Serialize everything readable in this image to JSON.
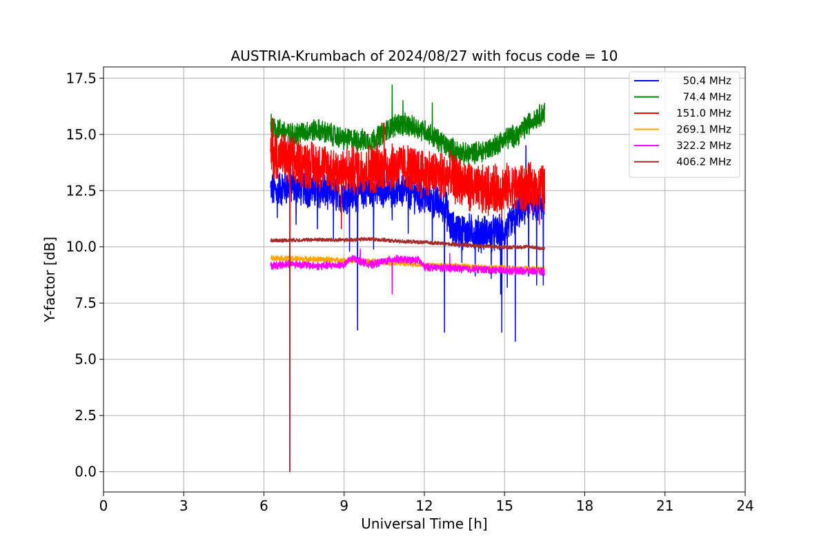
{
  "chart_data": {
    "type": "line",
    "title": "AUSTRIA-Krumbach of 2024/08/27 with focus code = 10",
    "xlabel": "Universal Time [h]",
    "ylabel": "Y-factor [dB]",
    "xlim": [
      0,
      24
    ],
    "ylim": [
      -0.9,
      18.0
    ],
    "xticks": [
      0,
      3,
      6,
      9,
      12,
      15,
      18,
      21,
      24
    ],
    "xtick_labels": [
      "0",
      "3",
      "6",
      "9",
      "12",
      "15",
      "18",
      "21",
      "24"
    ],
    "yticks": [
      0,
      2.5,
      5,
      7.5,
      10,
      12.5,
      15,
      17.5
    ],
    "ytick_labels": [
      "0.0",
      "2.5",
      "5.0",
      "7.5",
      "10.0",
      "12.5",
      "15.0",
      "17.5"
    ],
    "grid": true,
    "legend_position": "top-right",
    "series": [
      {
        "name": "50.4 MHz",
        "color": "#0000ff",
        "band": 1.4,
        "noise": 0.4,
        "points": [
          [
            6.25,
            12.5
          ],
          [
            7.0,
            12.7
          ],
          [
            8.0,
            12.5
          ],
          [
            9.0,
            12.3
          ],
          [
            10.0,
            12.5
          ],
          [
            11.0,
            12.6
          ],
          [
            12.0,
            12.2
          ],
          [
            12.8,
            11.8
          ],
          [
            13.0,
            10.8
          ],
          [
            14.0,
            10.6
          ],
          [
            15.0,
            10.6
          ],
          [
            15.5,
            11.5
          ],
          [
            16.0,
            12.0
          ],
          [
            16.5,
            11.8
          ]
        ],
        "dips": [
          [
            6.5,
            11.3
          ],
          [
            7.2,
            11.0
          ],
          [
            8.0,
            10.8
          ],
          [
            8.6,
            10.3
          ],
          [
            9.2,
            9.8
          ],
          [
            9.5,
            6.3
          ],
          [
            10.1,
            9.9
          ],
          [
            10.8,
            11.2
          ],
          [
            11.4,
            10.6
          ],
          [
            12.3,
            10.2
          ],
          [
            12.75,
            6.2
          ],
          [
            13.4,
            9.3
          ],
          [
            13.9,
            8.7
          ],
          [
            14.5,
            8.6
          ],
          [
            14.85,
            7.9
          ],
          [
            14.9,
            6.2
          ],
          [
            15.1,
            8.2
          ],
          [
            15.4,
            5.8
          ],
          [
            15.9,
            8.7
          ],
          [
            16.2,
            8.3
          ],
          [
            16.45,
            8.3
          ]
        ],
        "spikes": [
          [
            15.8,
            14.5
          ],
          [
            11.7,
            13.8
          ],
          [
            12.3,
            13.3
          ]
        ]
      },
      {
        "name": "74.4 MHz",
        "color": "#008000",
        "band": 0.9,
        "noise": 0.2,
        "points": [
          [
            6.25,
            15.4
          ],
          [
            7.0,
            15.0
          ],
          [
            8.0,
            15.2
          ],
          [
            9.0,
            14.8
          ],
          [
            10.0,
            14.7
          ],
          [
            11.0,
            15.5
          ],
          [
            12.0,
            15.2
          ],
          [
            12.8,
            14.5
          ],
          [
            13.5,
            14.1
          ],
          [
            14.0,
            14.2
          ],
          [
            14.5,
            14.4
          ],
          [
            15.0,
            14.8
          ],
          [
            15.5,
            15.0
          ],
          [
            16.0,
            15.6
          ],
          [
            16.5,
            16.0
          ]
        ],
        "dips": [],
        "spikes": [
          [
            10.8,
            17.2
          ],
          [
            6.27,
            15.9
          ],
          [
            11.2,
            16.5
          ],
          [
            12.3,
            16.4
          ]
        ]
      },
      {
        "name": "151.0 MHz",
        "color": "#ff0000",
        "band": 2.0,
        "noise": 0.4,
        "points": [
          [
            6.25,
            14.2
          ],
          [
            7.0,
            13.8
          ],
          [
            8.0,
            13.6
          ],
          [
            9.0,
            13.3
          ],
          [
            10.0,
            13.5
          ],
          [
            11.0,
            13.6
          ],
          [
            12.0,
            13.3
          ],
          [
            13.0,
            13.1
          ],
          [
            14.0,
            12.5
          ],
          [
            15.0,
            12.6
          ],
          [
            16.0,
            12.6
          ],
          [
            16.5,
            12.6
          ]
        ],
        "dips": [
          [
            6.97,
            0.0
          ],
          [
            8.9,
            10.8
          ],
          [
            14.9,
            11.2
          ],
          [
            16.3,
            11.0
          ]
        ],
        "spikes": [
          [
            6.3,
            15.7
          ],
          [
            10.5,
            15.5
          ]
        ]
      },
      {
        "name": "269.1 MHz",
        "color": "#ffa500",
        "band": 0.22,
        "noise": 0.05,
        "points": [
          [
            6.25,
            9.5
          ],
          [
            8.0,
            9.45
          ],
          [
            10.0,
            9.35
          ],
          [
            12.0,
            9.2
          ],
          [
            14.0,
            9.1
          ],
          [
            16.5,
            9.0
          ]
        ],
        "dips": [
          [
            6.97,
            0.0
          ]
        ],
        "spikes": []
      },
      {
        "name": "322.2 MHz",
        "color": "#ff00ff",
        "band": 0.3,
        "noise": 0.08,
        "points": [
          [
            6.25,
            9.15
          ],
          [
            7.0,
            9.25
          ],
          [
            8.0,
            9.15
          ],
          [
            9.0,
            9.2
          ],
          [
            9.3,
            9.5
          ],
          [
            10.0,
            9.2
          ],
          [
            10.8,
            9.45
          ],
          [
            11.8,
            9.4
          ],
          [
            12.0,
            9.1
          ],
          [
            13.0,
            9.05
          ],
          [
            14.0,
            9.0
          ],
          [
            15.0,
            8.95
          ],
          [
            16.5,
            8.9
          ]
        ],
        "dips": [
          [
            10.8,
            7.9
          ],
          [
            6.97,
            0.0
          ]
        ],
        "spikes": [
          [
            12.95,
            9.7
          ],
          [
            9.6,
            9.9
          ]
        ]
      },
      {
        "name": "406.2 MHz",
        "color": "#a52a2a",
        "band": 0.15,
        "noise": 0.03,
        "points": [
          [
            6.25,
            10.28
          ],
          [
            8.0,
            10.32
          ],
          [
            9.0,
            10.3
          ],
          [
            10.0,
            10.35
          ],
          [
            11.0,
            10.25
          ],
          [
            12.0,
            10.2
          ],
          [
            13.0,
            10.12
          ],
          [
            14.0,
            10.05
          ],
          [
            15.0,
            9.98
          ],
          [
            16.0,
            10.0
          ],
          [
            16.5,
            9.9
          ]
        ],
        "dips": [
          [
            6.97,
            0.0
          ]
        ],
        "spikes": []
      }
    ]
  }
}
